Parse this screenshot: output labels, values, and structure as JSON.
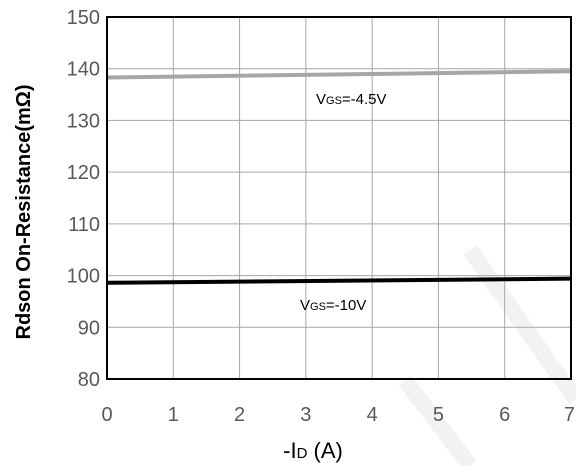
{
  "chart_data": {
    "type": "line",
    "ylabel": "Rdson On-Resistance(mΩ)",
    "xlabel_prefix": "-I",
    "xlabel_sub": "D",
    "xlabel_suffix": " (A)",
    "xlim": [
      0,
      7
    ],
    "ylim": [
      80,
      150
    ],
    "x_ticks": [
      0,
      1,
      2,
      3,
      4,
      5,
      6,
      7
    ],
    "y_ticks": [
      80,
      90,
      100,
      110,
      120,
      130,
      140,
      150
    ],
    "x_tick_labels": [
      "0",
      "1",
      "2",
      "3",
      "4",
      "5",
      "6",
      "7"
    ],
    "y_tick_labels": [
      "80",
      "90",
      "100",
      "110",
      "120",
      "130",
      "140",
      "150"
    ],
    "grid": true,
    "series": [
      {
        "label_prefix": "V",
        "label_sub": "GS",
        "label_suffix": "=-4.5V",
        "color": "#a6a6a6",
        "x": [
          0,
          7
        ],
        "y": [
          138.3,
          139.5
        ]
      },
      {
        "label_prefix": "V",
        "label_sub": "GS",
        "label_suffix": "=-10V",
        "color": "#000000",
        "x": [
          0,
          7
        ],
        "y": [
          98.6,
          99.4
        ]
      }
    ]
  }
}
